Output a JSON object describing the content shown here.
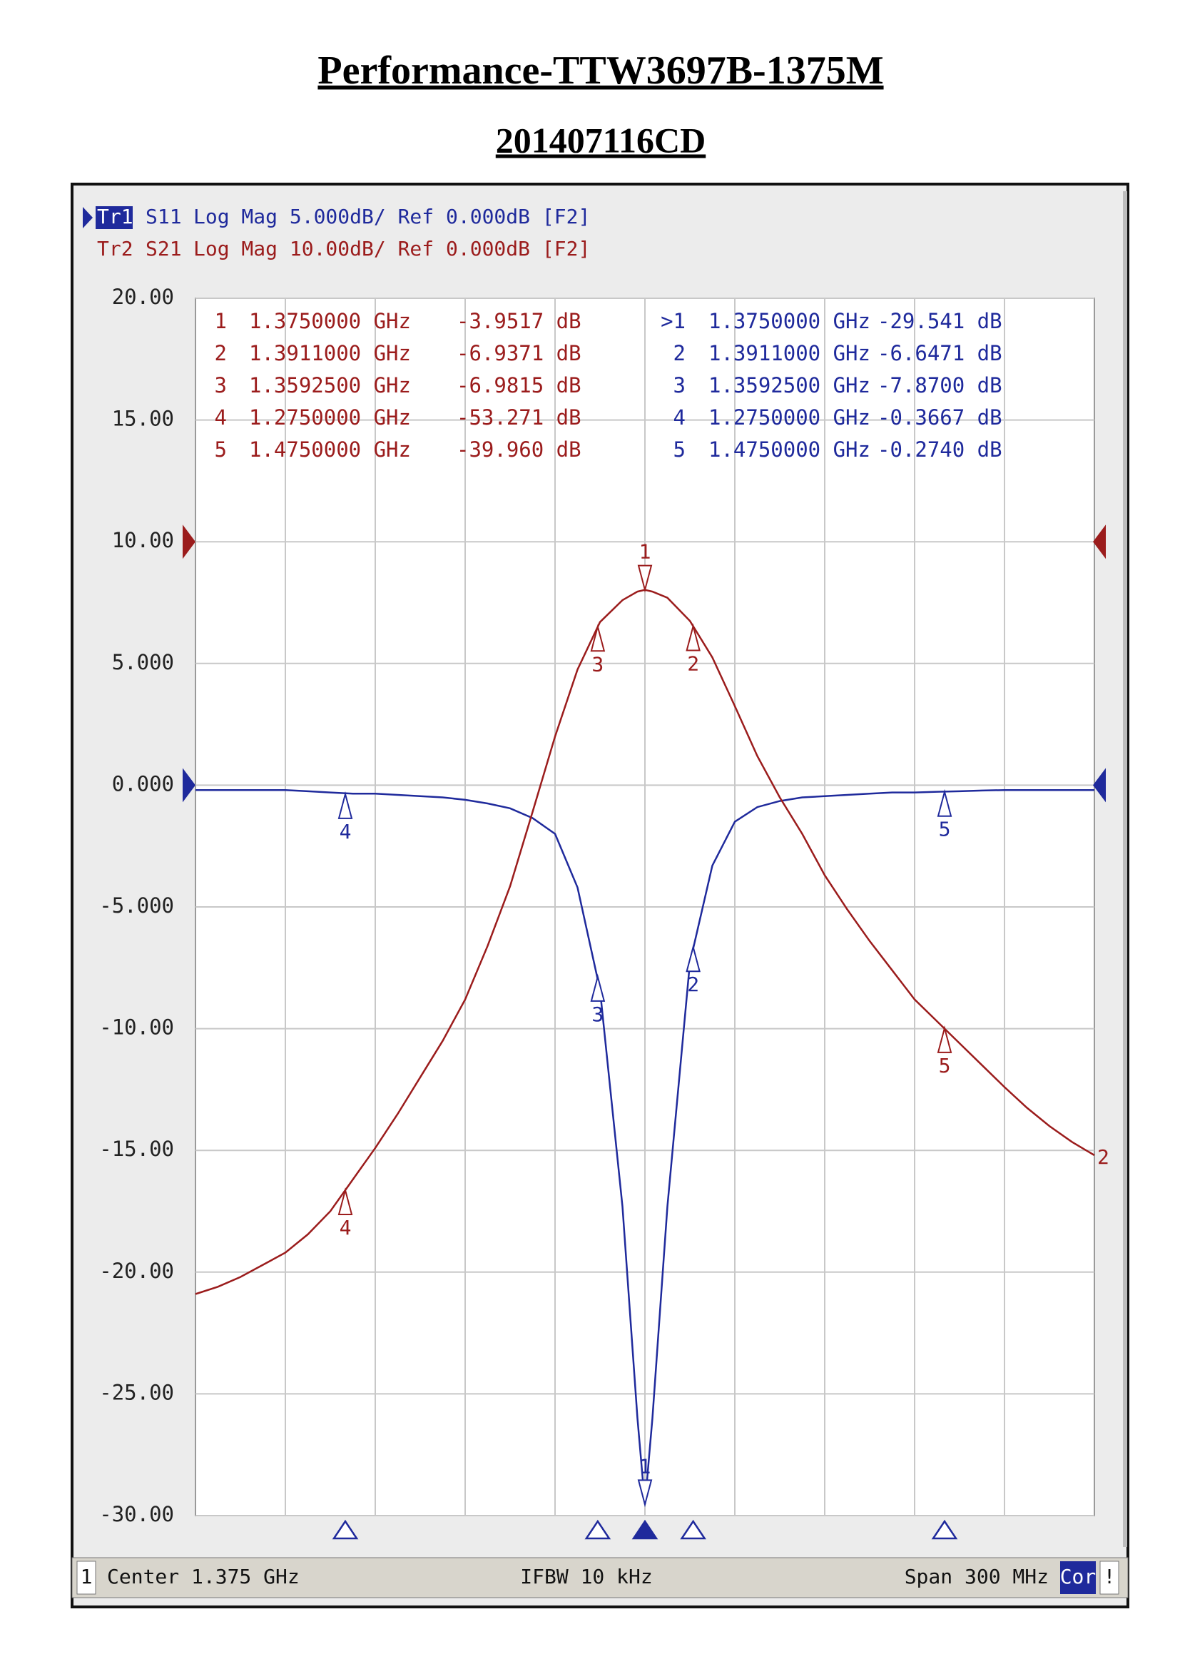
{
  "chart_data": {
    "type": "line",
    "title": "Performance-TTW3697B-1375M",
    "subtitle": "201407116CD",
    "x": [
      1.225,
      1.2325,
      1.24,
      1.2475,
      1.255,
      1.2625,
      1.27,
      1.2775,
      1.285,
      1.2925,
      1.3,
      1.3075,
      1.315,
      1.3225,
      1.33,
      1.3375,
      1.345,
      1.3525,
      1.36,
      1.3675,
      1.3725,
      1.375,
      1.3775,
      1.3825,
      1.39,
      1.3975,
      1.405,
      1.4125,
      1.42,
      1.4275,
      1.435,
      1.4425,
      1.45,
      1.4575,
      1.465,
      1.4725,
      1.48,
      1.4875,
      1.495,
      1.5025,
      1.51,
      1.5175,
      1.525
    ],
    "xlim": [
      1.225,
      1.525
    ],
    "ylim": [
      -30,
      20
    ],
    "yticks": [
      {
        "value": 20,
        "label": "20.00"
      },
      {
        "value": 15,
        "label": "15.00"
      },
      {
        "value": 10,
        "label": "10.00"
      },
      {
        "value": 5,
        "label": "5.000"
      },
      {
        "value": 0,
        "label": "0.000"
      },
      {
        "value": -5,
        "label": "-5.000"
      },
      {
        "value": -10,
        "label": "-10.00"
      },
      {
        "value": -15,
        "label": "-15.00"
      },
      {
        "value": -20,
        "label": "-20.00"
      },
      {
        "value": -25,
        "label": "-25.00"
      },
      {
        "value": -30,
        "label": "-30.00"
      }
    ],
    "y2lim": [
      -80,
      20
    ],
    "grid": true,
    "marker_names": [
      "1",
      "2",
      "3",
      "4",
      "5"
    ],
    "active_marker_label": ">1",
    "series": [
      {
        "name": "S11",
        "trace": "Tr1",
        "header": "Log Mag 5.000dB/ Ref 0.000dB [F2]",
        "color": "#1f2a9c",
        "active": true,
        "values": [
          -0.2,
          -0.2,
          -0.2,
          -0.2,
          -0.2,
          -0.25,
          -0.3,
          -0.35,
          -0.35,
          -0.4,
          -0.45,
          -0.5,
          -0.6,
          -0.75,
          -0.95,
          -1.35,
          -2.0,
          -4.2,
          -8.4,
          -17.3,
          -26,
          -29.541,
          -26,
          -17.3,
          -7.3,
          -3.3,
          -1.5,
          -0.9,
          -0.65,
          -0.5,
          -0.45,
          -0.4,
          -0.35,
          -0.3,
          -0.3,
          -0.27,
          -0.25,
          -0.22,
          -0.2,
          -0.2,
          -0.2,
          -0.2,
          -0.2
        ],
        "marker_x": [
          1.375,
          1.3911,
          1.35925,
          1.275,
          1.475
        ],
        "marker_x_labels": [
          "1.3750000 GHz",
          "1.3911000 GHz",
          "1.3592500 GHz",
          "1.2750000 GHz",
          "1.4750000 GHz"
        ],
        "marker_values": [
          -29.541,
          -6.6471,
          -7.87,
          -0.3667,
          -0.274
        ],
        "marker_value_labels": [
          "-29.541 dB",
          "-6.6471 dB",
          "-7.8700 dB",
          "-0.3667 dB",
          "-0.2740 dB"
        ]
      },
      {
        "name": "S21",
        "trace": "Tr2",
        "header": "Log Mag 10.00dB/ Ref 0.000dB [F2]",
        "color": "#9b1c1c",
        "axis": "y2",
        "trace_label": "2",
        "values": [
          -61.8,
          -61.2,
          -60.4,
          -59.4,
          -58.4,
          -56.9,
          -55.0,
          -52.4,
          -49.8,
          -47,
          -44,
          -41,
          -37.6,
          -33.2,
          -28.3,
          -22.2,
          -16,
          -10.5,
          -6.6,
          -4.8,
          -4.1,
          -3.9517,
          -4.1,
          -4.6,
          -6.5,
          -9.5,
          -13.5,
          -17.6,
          -21.0,
          -24,
          -27.4,
          -30.2,
          -32.8,
          -35.2,
          -37.6,
          -39.4,
          -41.2,
          -43,
          -44.8,
          -46.5,
          -48.0,
          -49.3,
          -50.4
        ],
        "marker_x": [
          1.375,
          1.3911,
          1.35925,
          1.275,
          1.475
        ],
        "marker_x_labels": [
          "1.3750000 GHz",
          "1.3911000 GHz",
          "1.3592500 GHz",
          "1.2750000 GHz",
          "1.4750000 GHz"
        ],
        "marker_values": [
          -3.9517,
          -6.9371,
          -6.9815,
          -53.271,
          -39.96
        ],
        "marker_value_labels": [
          "-3.9517 dB",
          "-6.9371 dB",
          "-6.9815 dB",
          "-53.271 dB",
          "-39.960 dB"
        ]
      }
    ],
    "footer": {
      "channel": "1",
      "center": "Center 1.375 GHz",
      "ifbw": "IFBW 10 kHz",
      "span": "Span 300 MHz",
      "correction": "Cor",
      "status": "!"
    }
  }
}
